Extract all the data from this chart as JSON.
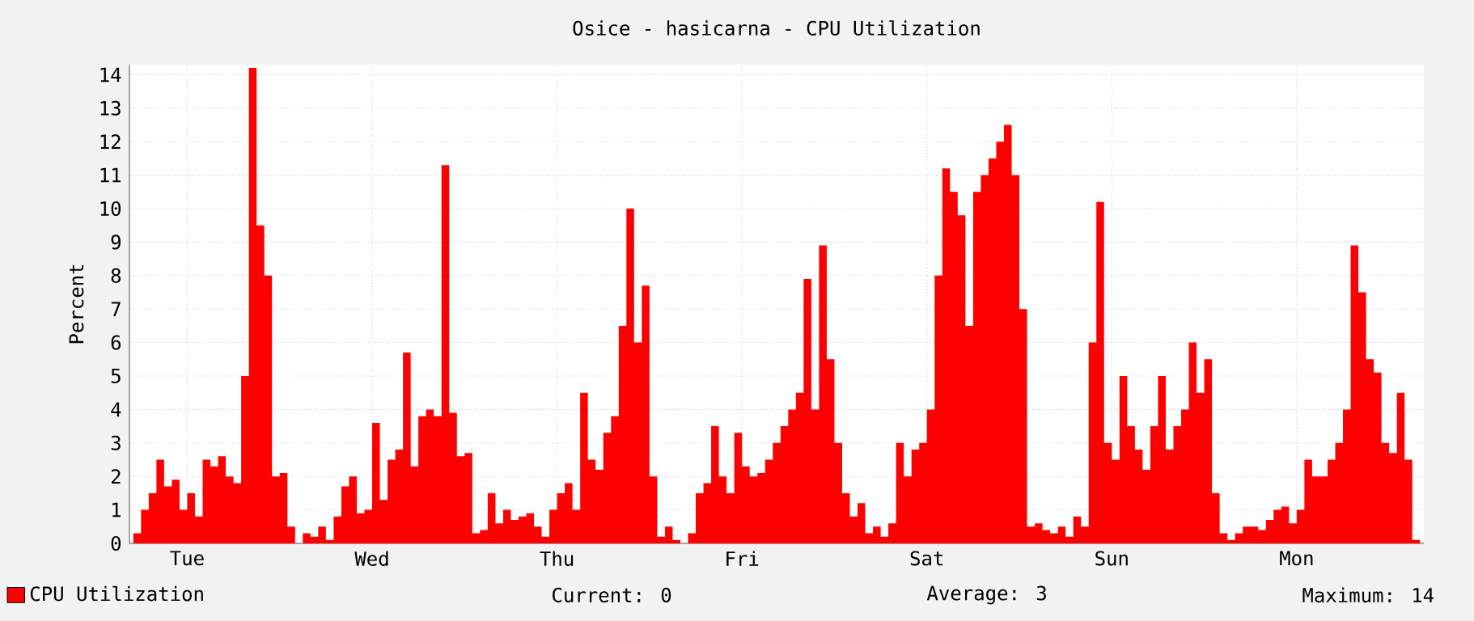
{
  "chart_data": {
    "type": "area",
    "title": "Osice - hasicarna - CPU Utilization",
    "ylabel": "Percent",
    "categories": [
      null,
      null,
      null,
      null,
      null,
      null,
      null,
      "Tue",
      null,
      null,
      null,
      null,
      null,
      null,
      null,
      null,
      null,
      null,
      null,
      null,
      null,
      null,
      null,
      null,
      null,
      null,
      null,
      null,
      null,
      null,
      null,
      "Wed",
      null,
      null,
      null,
      null,
      null,
      null,
      null,
      null,
      null,
      null,
      null,
      null,
      null,
      null,
      null,
      null,
      null,
      null,
      null,
      null,
      null,
      null,
      null,
      "Thu",
      null,
      null,
      null,
      null,
      null,
      null,
      null,
      null,
      null,
      null,
      null,
      null,
      null,
      null,
      null,
      null,
      null,
      null,
      null,
      null,
      null,
      null,
      null,
      "Fri",
      null,
      null,
      null,
      null,
      null,
      null,
      null,
      null,
      null,
      null,
      null,
      null,
      null,
      null,
      null,
      null,
      null,
      null,
      null,
      null,
      null,
      null,
      null,
      "Sat",
      null,
      null,
      null,
      null,
      null,
      null,
      null,
      null,
      null,
      null,
      null,
      null,
      null,
      null,
      null,
      null,
      null,
      null,
      null,
      null,
      null,
      null,
      null,
      "Sun",
      null,
      null,
      null,
      null,
      null,
      null,
      null,
      null,
      null,
      null,
      null,
      null,
      null,
      null,
      null,
      null,
      null,
      null,
      null,
      null,
      null,
      null,
      null,
      "Mon",
      null,
      null,
      null,
      null,
      null,
      null,
      null,
      null,
      null,
      null,
      null,
      null,
      null,
      null,
      null,
      null
    ],
    "series": [
      {
        "name": "CPU Utilization",
        "color": "#ff0000",
        "values": [
          0.3,
          1.0,
          1.5,
          2.5,
          1.7,
          1.9,
          1.0,
          1.5,
          0.8,
          2.5,
          2.3,
          2.6,
          2.0,
          1.8,
          5.0,
          14.2,
          9.5,
          8.0,
          2.0,
          2.1,
          0.5,
          0,
          0.3,
          0.2,
          0.5,
          0.1,
          0.8,
          1.7,
          2.0,
          0.9,
          1.0,
          3.6,
          1.3,
          2.5,
          2.8,
          5.7,
          2.3,
          3.8,
          4.0,
          3.8,
          11.3,
          3.9,
          2.6,
          2.7,
          0.3,
          0.4,
          1.5,
          0.6,
          1.0,
          0.7,
          0.8,
          0.9,
          0.5,
          0.2,
          1.0,
          1.5,
          1.8,
          1.0,
          4.5,
          2.5,
          2.2,
          3.3,
          3.8,
          6.5,
          10.0,
          6.0,
          7.7,
          2.0,
          0.2,
          0.5,
          0.1,
          0,
          0.3,
          1.5,
          1.8,
          3.5,
          2.0,
          1.5,
          3.3,
          2.3,
          2.0,
          2.1,
          2.5,
          3.0,
          3.5,
          4.0,
          4.5,
          7.9,
          4.0,
          8.9,
          5.5,
          3.0,
          1.5,
          0.8,
          1.2,
          0.3,
          0.5,
          0.2,
          0.6,
          3.0,
          2.0,
          2.8,
          3.0,
          4.0,
          8.0,
          11.2,
          10.5,
          9.8,
          6.5,
          10.5,
          11.0,
          11.5,
          12.0,
          12.5,
          11.0,
          7.0,
          0.5,
          0.6,
          0.4,
          0.3,
          0.5,
          0.2,
          0.8,
          0.5,
          6.0,
          10.2,
          3.0,
          2.5,
          5.0,
          3.5,
          2.8,
          2.2,
          3.5,
          5.0,
          2.8,
          3.5,
          4.0,
          6.0,
          4.5,
          5.5,
          1.5,
          0.3,
          0.1,
          0.3,
          0.5,
          0.5,
          0.4,
          0.7,
          1.0,
          1.1,
          0.6,
          1.0,
          2.5,
          2.0,
          2.0,
          2.5,
          3.0,
          4.0,
          8.9,
          7.5,
          5.5,
          5.1,
          3.0,
          2.7,
          4.5,
          2.5,
          0.1,
          0
        ]
      }
    ],
    "ylim": [
      0,
      14.3
    ],
    "yticks": [
      0,
      1,
      2,
      3,
      4,
      5,
      6,
      7,
      8,
      9,
      10,
      11,
      12,
      13,
      14
    ],
    "grid": true,
    "legend": "bottom left",
    "annotations": [
      "Current: 0",
      "Average: 3",
      "Maximum: 14"
    ]
  }
}
